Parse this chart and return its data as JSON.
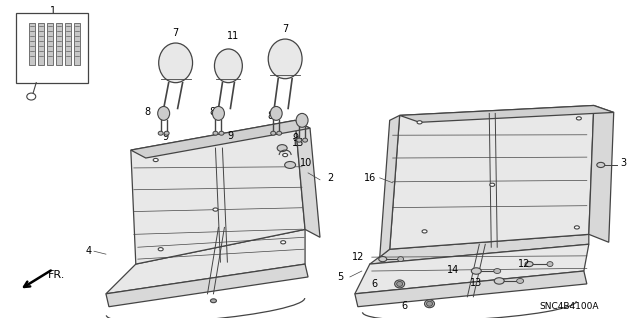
{
  "bg_color": "#ffffff",
  "line_color": "#444444",
  "fig_width": 6.4,
  "fig_height": 3.19,
  "dpi": 100,
  "diagram_id": "SNC4B4100A",
  "seat_fill": "#e8e8e8",
  "seat_fill2": "#d8d8d8"
}
